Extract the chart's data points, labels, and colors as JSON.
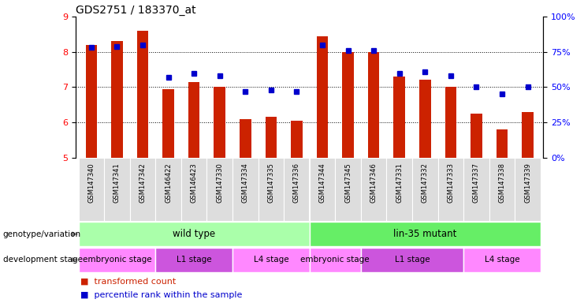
{
  "title": "GDS2751 / 183370_at",
  "samples": [
    "GSM147340",
    "GSM147341",
    "GSM147342",
    "GSM146422",
    "GSM146423",
    "GSM147330",
    "GSM147334",
    "GSM147335",
    "GSM147336",
    "GSM147344",
    "GSM147345",
    "GSM147346",
    "GSM147331",
    "GSM147332",
    "GSM147333",
    "GSM147337",
    "GSM147338",
    "GSM147339"
  ],
  "bar_values": [
    8.2,
    8.3,
    8.6,
    6.95,
    7.15,
    7.0,
    6.1,
    6.15,
    6.05,
    8.45,
    8.0,
    8.0,
    7.3,
    7.2,
    7.0,
    6.25,
    5.8,
    6.3
  ],
  "percentile_values": [
    78,
    79,
    80,
    57,
    60,
    58,
    47,
    48,
    47,
    80,
    76,
    76,
    60,
    61,
    58,
    50,
    45,
    50
  ],
  "ylim_left": [
    5,
    9
  ],
  "ylim_right": [
    0,
    100
  ],
  "yticks_left": [
    5,
    6,
    7,
    8,
    9
  ],
  "yticks_right": [
    0,
    25,
    50,
    75,
    100
  ],
  "bar_color": "#CC2200",
  "dot_color": "#0000CC",
  "bar_width": 0.45,
  "genotype_groups": [
    {
      "label": "wild type",
      "start": 0,
      "end": 9,
      "color": "#AAFFAA"
    },
    {
      "label": "lin-35 mutant",
      "start": 9,
      "end": 18,
      "color": "#66EE66"
    }
  ],
  "stage_groups": [
    {
      "label": "embryonic stage",
      "start": 0,
      "end": 3,
      "color": "#FF99FF"
    },
    {
      "label": "L1 stage",
      "start": 3,
      "end": 6,
      "color": "#CC66EE"
    },
    {
      "label": "L4 stage",
      "start": 6,
      "end": 9,
      "color": "#FF99FF"
    },
    {
      "label": "embryonic stage",
      "start": 9,
      "end": 11,
      "color": "#FF99FF"
    },
    {
      "label": "L1 stage",
      "start": 11,
      "end": 15,
      "color": "#CC66EE"
    },
    {
      "label": "L4 stage",
      "start": 15,
      "end": 18,
      "color": "#FF99FF"
    }
  ]
}
